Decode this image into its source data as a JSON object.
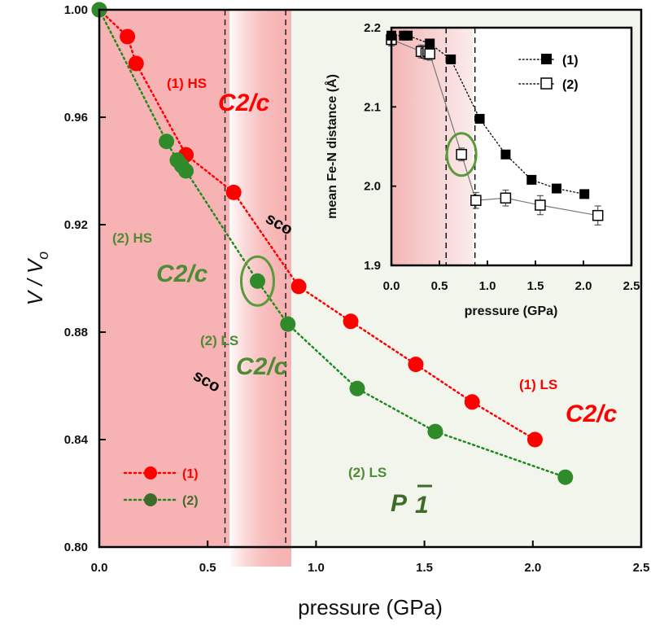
{
  "colors": {
    "series1": "#ff0000",
    "series2": "#1f8a1f",
    "series2_dark": "#3e6b2a",
    "hs_region": "#f7b3b3",
    "ls_region": "#f1f5ec",
    "text_green": "#4f8a34",
    "text_red": "#ff0000"
  },
  "chart_data": [
    {
      "type": "scatter",
      "xlabel": "pressure (GPa)",
      "ylabel": "V / V",
      "ylabel_sub": "o",
      "xlim": [
        0.0,
        2.5
      ],
      "ylim": [
        0.8,
        1.0
      ],
      "x_ticks": [
        "0.0",
        "0.5",
        "1.0",
        "1.5",
        "2.0",
        "2.5"
      ],
      "y_ticks": [
        "0.80",
        "0.84",
        "0.88",
        "0.92",
        "0.96",
        "1.00"
      ],
      "transition_lines_gpa": [
        0.58,
        0.86
      ],
      "series": [
        {
          "name": "(1)",
          "color": "#ff0000",
          "x": [
            0.0,
            0.13,
            0.17,
            0.4,
            0.62,
            0.92,
            1.16,
            1.46,
            1.72,
            2.01
          ],
          "y": [
            1.0,
            0.99,
            0.98,
            0.946,
            0.932,
            0.897,
            0.884,
            0.868,
            0.854,
            0.84
          ]
        },
        {
          "name": "(2)",
          "color": "#1f8a1f",
          "x": [
            0.0,
            0.31,
            0.36,
            0.38,
            0.4,
            0.73,
            0.87,
            1.19,
            1.55,
            2.15
          ],
          "y": [
            1.0,
            0.951,
            0.944,
            0.942,
            0.94,
            0.899,
            0.883,
            0.859,
            0.843,
            0.826
          ]
        }
      ],
      "circled_point": {
        "x": 0.73,
        "y": 0.899
      },
      "annotations": {
        "hs1_label": "(1) HS",
        "hs1_group": "C2/c",
        "hs2_label": "(2) HS",
        "hs2_group": "C2/c",
        "ls2_label": "(2) LS",
        "ls2_group": "C2/c",
        "sco_upper": "sco",
        "sco_lower": "sco",
        "ls1_label": "(1) LS",
        "ls1_group": "C2/c",
        "ls2b_label": "(2) LS",
        "ls2b_group_letter": "P",
        "ls2b_group_number": "1"
      },
      "legend": {
        "position": "bottom-left",
        "entries": [
          "(1)",
          "(2)"
        ]
      }
    },
    {
      "type": "scatter",
      "xlabel": "pressure (GPa)",
      "ylabel": "mean Fe-N distance (Å)",
      "xlim": [
        0.0,
        2.5
      ],
      "ylim": [
        1.9,
        2.2
      ],
      "x_ticks": [
        "0.0",
        "0.5",
        "1.0",
        "1.5",
        "2.0",
        "2.5"
      ],
      "y_ticks": [
        "1.9",
        "2.0",
        "2.1",
        "2.2"
      ],
      "transition_lines_gpa": [
        0.57,
        0.87
      ],
      "series": [
        {
          "name": "(1)",
          "marker": "filled-square",
          "x": [
            0.0,
            0.13,
            0.17,
            0.4,
            0.62,
            0.92,
            1.19,
            1.46,
            1.72,
            2.01
          ],
          "y": [
            2.19,
            2.19,
            2.19,
            2.18,
            2.16,
            2.085,
            2.04,
            2.008,
            1.997,
            1.99
          ]
        },
        {
          "name": "(2)",
          "marker": "open-square",
          "x": [
            0.0,
            0.31,
            0.36,
            0.38,
            0.4,
            0.73,
            0.88,
            1.19,
            1.55,
            2.15
          ],
          "y": [
            2.185,
            2.17,
            2.168,
            2.17,
            2.167,
            2.04,
            1.982,
            1.985,
            1.976,
            1.963
          ],
          "err": [
            0.008,
            0.008,
            0.008,
            0.008,
            0.008,
            0.008,
            0.01,
            0.01,
            0.012,
            0.012
          ]
        }
      ],
      "circled_point": {
        "x": 0.73,
        "y": 2.04
      },
      "legend": {
        "position": "top-right",
        "entries": [
          "(1)",
          "(2)"
        ]
      }
    }
  ]
}
